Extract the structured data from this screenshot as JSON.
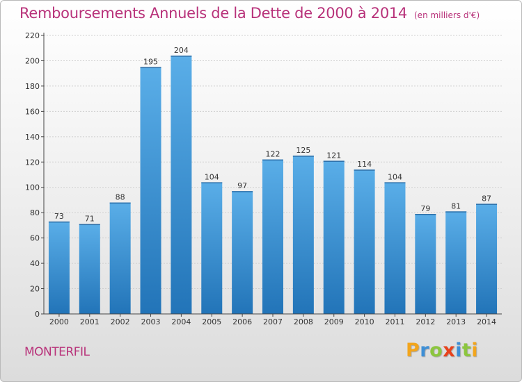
{
  "header": {
    "title": "Remboursements Annuels de la Dette de 2000 à 2014",
    "unit": "(en milliers d'€)"
  },
  "footer": {
    "city": "MONTERFIL",
    "logo_letters": [
      "P",
      "r",
      "o",
      "x",
      "i",
      "t",
      "i"
    ],
    "logo_colors": [
      "#f2a51c",
      "#3e8fd6",
      "#8cc63e",
      "#e8421b",
      "#3e8fd6",
      "#8cc63e",
      "#f2a51c"
    ]
  },
  "colors": {
    "bar_top": "#5aaee8",
    "bar_bottom": "#2274b8",
    "grid": "#cfcfcf",
    "axis": "#444444",
    "title": "#b8327a"
  },
  "chart_data": {
    "type": "bar",
    "categories": [
      "2000",
      "2001",
      "2002",
      "2003",
      "2004",
      "2005",
      "2006",
      "2007",
      "2008",
      "2009",
      "2010",
      "2011",
      "2012",
      "2013",
      "2014"
    ],
    "values": [
      73,
      71,
      88,
      195,
      204,
      104,
      97,
      122,
      125,
      121,
      114,
      104,
      79,
      81,
      87
    ],
    "title": "Remboursements Annuels de la Dette de 2000 à 2014",
    "xlabel": "",
    "ylabel": "",
    "ylim": [
      0,
      220
    ],
    "yticks": [
      0,
      20,
      40,
      60,
      80,
      100,
      120,
      140,
      160,
      180,
      200,
      220
    ],
    "grid": true,
    "data_labels": true
  }
}
